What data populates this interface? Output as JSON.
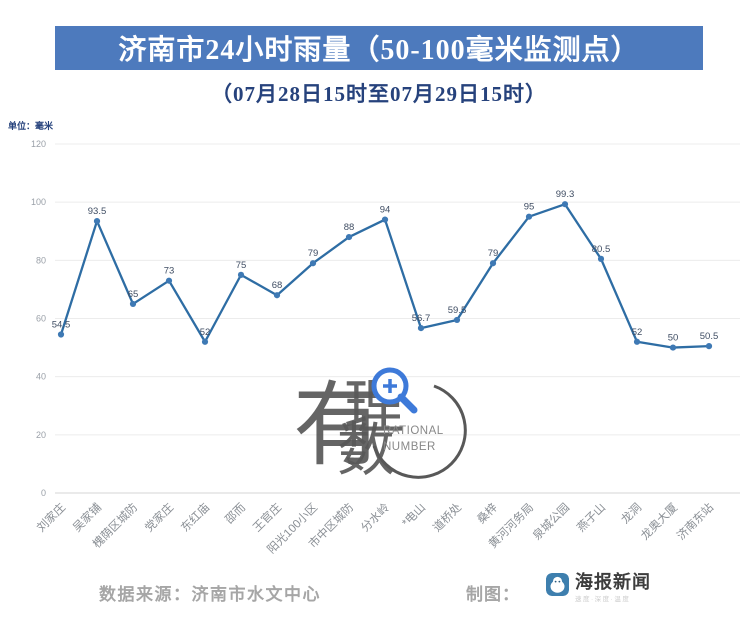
{
  "header": {
    "title": "济南市24小时雨量（50-100毫米监测点）",
    "subtitle": "（07月28日15时至07月29日15时）",
    "banner_color": "#4d7abd"
  },
  "chart_data": {
    "type": "line",
    "unit_label": "单位：毫米",
    "categories": [
      "刘家庄",
      "吴家铺",
      "槐荫区城防",
      "党家庄",
      "东红庙",
      "邵而",
      "王官庄",
      "阳光100小区",
      "市中区城防",
      "分水岭",
      "*电山",
      "道桥处",
      "桑梓",
      "黄河河务局",
      "泉城公园",
      "燕子山",
      "龙洞",
      "龙奥大厦",
      "济南东站"
    ],
    "values": [
      54.5,
      93.5,
      65,
      73,
      52,
      75,
      68,
      79,
      88,
      94,
      56.7,
      59.5,
      79,
      95,
      99.3,
      80.5,
      52,
      50,
      50.5
    ],
    "title": "济南市24小时雨量（50-100毫米监测点）",
    "xlabel": "",
    "ylabel": "单位：毫米",
    "ylim": [
      0,
      120
    ],
    "yticks": [
      0,
      20,
      40,
      60,
      80,
      100,
      120
    ],
    "grid": true,
    "legend": "none",
    "line_color": "#2e6da4",
    "marker_color": "#3e79b4",
    "gridline_color": "#ececec",
    "baseline_color": "#d4d4d4"
  },
  "watermark": {
    "cn_char_1": "有",
    "cn_char_2": "理",
    "cn_char_3": "数",
    "en_line_1": "RATIONAL",
    "en_line_2": "NUMBER",
    "magnifier_color": "#2e6fd6"
  },
  "footer": {
    "source_label": "数据来源：济南市水文中心",
    "credit_label": "制图：",
    "brand_name": "海报新闻",
    "brand_tagline": "速度·深度·温度",
    "logo_icon": "seal-mascot-icon",
    "logo_color": "#3e7fae"
  }
}
